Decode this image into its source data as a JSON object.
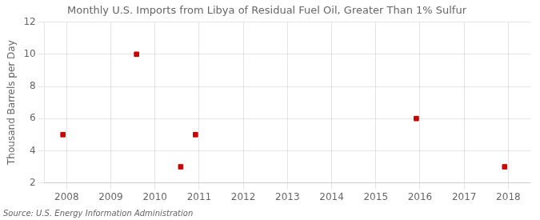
{
  "chart_data": {
    "type": "scatter",
    "title": "Monthly U.S. Imports from Libya of Residual Fuel Oil, Greater Than 1% Sulfur",
    "ylabel": "Thousand Barrels per Day",
    "annotations": [
      "Source: U.S. Energy Information Administration"
    ],
    "x": [
      2007.917,
      2009.583,
      2010.583,
      2010.917,
      2015.917,
      2017.917
    ],
    "values": [
      5,
      10,
      3,
      5,
      6,
      3
    ],
    "color": "#cc0000",
    "marker": "square",
    "xlim": [
      2007.5,
      2018.5
    ],
    "ylim": [
      2,
      12
    ],
    "xticks": [
      2008,
      2009,
      2010,
      2011,
      2012,
      2013,
      2014,
      2015,
      2016,
      2017,
      2018
    ],
    "yticks": [
      2,
      4,
      6,
      8,
      10,
      12
    ],
    "grid": true
  }
}
